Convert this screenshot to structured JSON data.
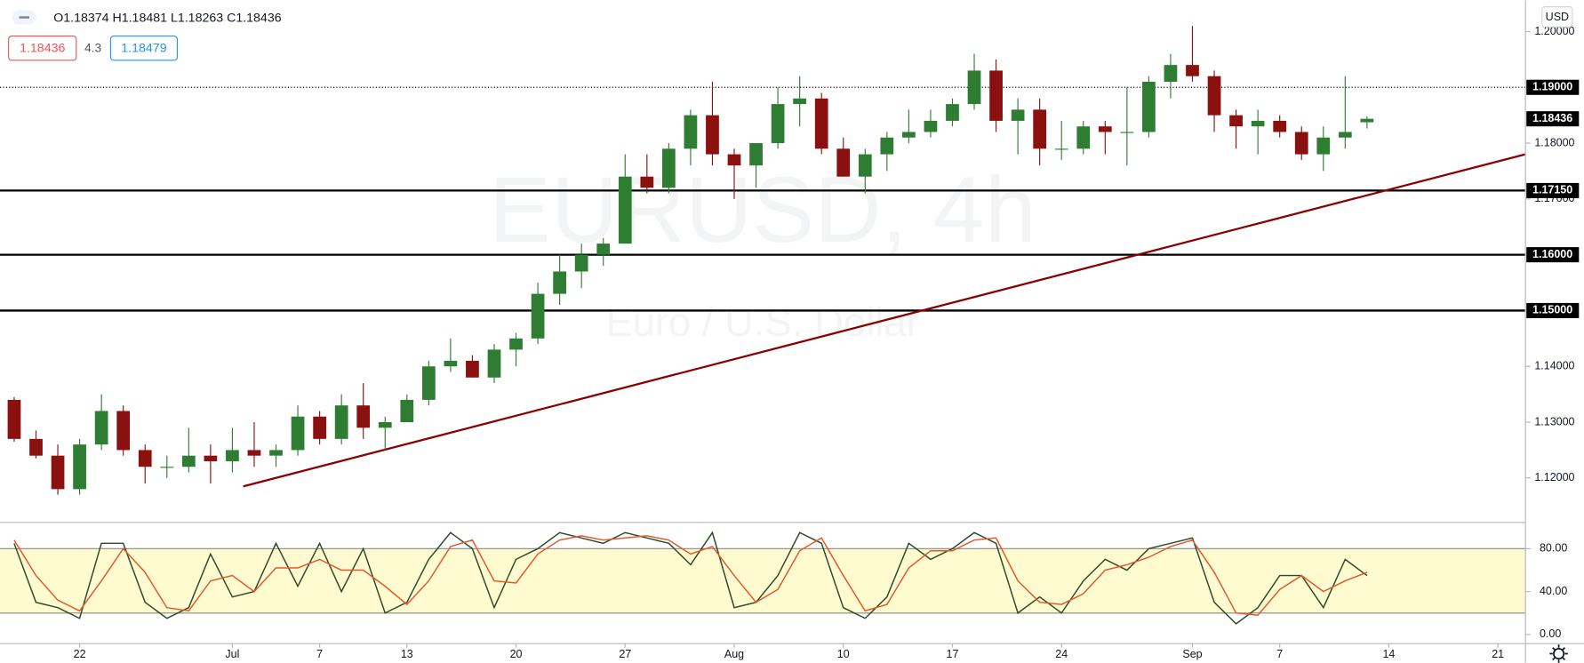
{
  "header": {
    "ohlc": "O1.18374 H1.18481 L1.18263 C1.18436",
    "bid": "1.18436",
    "spread": "4.3",
    "ask": "1.18479",
    "currency": "USD",
    "watermark": "EURUSD, 4h",
    "watermark_sub": "Euro / U.S. Dollar"
  },
  "chart_data": [
    {
      "type": "candlestick",
      "open": [
        1.134,
        1.127,
        1.124,
        1.118,
        1.126,
        1.132,
        1.125,
        1.122,
        1.122,
        1.124,
        1.123,
        1.125,
        1.124,
        1.125,
        1.131,
        1.127,
        1.133,
        1.129,
        1.13,
        1.134,
        1.14,
        1.141,
        1.138,
        1.143,
        1.145,
        1.153,
        1.157,
        1.16,
        1.162,
        1.174,
        1.172,
        1.179,
        1.185,
        1.178,
        1.176,
        1.18,
        1.187,
        1.188,
        1.179,
        1.174,
        1.178,
        1.181,
        1.182,
        1.184,
        1.187,
        1.193,
        1.184,
        1.186,
        1.179,
        1.179,
        1.183,
        1.182,
        1.182,
        1.191,
        1.194,
        1.192,
        1.185,
        1.183,
        1.184,
        1.182,
        1.178,
        1.181,
        1.18374
      ],
      "high": [
        1.1345,
        1.1285,
        1.126,
        1.127,
        1.135,
        1.133,
        1.126,
        1.124,
        1.129,
        1.126,
        1.129,
        1.13,
        1.126,
        1.133,
        1.132,
        1.135,
        1.137,
        1.131,
        1.135,
        1.141,
        1.145,
        1.142,
        1.144,
        1.146,
        1.155,
        1.16,
        1.162,
        1.163,
        1.178,
        1.178,
        1.18,
        1.186,
        1.191,
        1.179,
        1.18,
        1.19,
        1.192,
        1.189,
        1.181,
        1.179,
        1.182,
        1.186,
        1.186,
        1.188,
        1.196,
        1.195,
        1.188,
        1.188,
        1.184,
        1.184,
        1.184,
        1.19,
        1.192,
        1.196,
        1.201,
        1.193,
        1.186,
        1.186,
        1.185,
        1.183,
        1.183,
        1.192,
        1.18481
      ],
      "low": [
        1.1265,
        1.1235,
        1.117,
        1.117,
        1.125,
        1.124,
        1.119,
        1.12,
        1.121,
        1.119,
        1.121,
        1.122,
        1.122,
        1.124,
        1.126,
        1.126,
        1.127,
        1.125,
        1.13,
        1.133,
        1.139,
        1.138,
        1.137,
        1.14,
        1.144,
        1.151,
        1.154,
        1.158,
        1.162,
        1.171,
        1.171,
        1.176,
        1.176,
        1.17,
        1.172,
        1.179,
        1.183,
        1.178,
        1.174,
        1.171,
        1.175,
        1.18,
        1.181,
        1.183,
        1.186,
        1.182,
        1.178,
        1.176,
        1.177,
        1.178,
        1.178,
        1.176,
        1.181,
        1.188,
        1.191,
        1.182,
        1.179,
        1.178,
        1.181,
        1.177,
        1.175,
        1.179,
        1.18263
      ],
      "close": [
        1.127,
        1.124,
        1.118,
        1.126,
        1.132,
        1.125,
        1.122,
        1.122,
        1.124,
        1.123,
        1.125,
        1.124,
        1.125,
        1.131,
        1.127,
        1.133,
        1.129,
        1.13,
        1.134,
        1.14,
        1.141,
        1.138,
        1.143,
        1.145,
        1.153,
        1.157,
        1.16,
        1.162,
        1.174,
        1.172,
        1.179,
        1.185,
        1.178,
        1.176,
        1.18,
        1.187,
        1.188,
        1.179,
        1.174,
        1.178,
        1.181,
        1.182,
        1.184,
        1.187,
        1.193,
        1.184,
        1.186,
        1.179,
        1.179,
        1.183,
        1.182,
        1.182,
        1.191,
        1.194,
        1.192,
        1.185,
        1.183,
        1.184,
        1.182,
        1.178,
        1.181,
        1.182,
        1.18436
      ],
      "up_color": "#2e7d32",
      "down_color": "#8b1010",
      "xlim": [
        -0.65,
        69.26
      ],
      "ylim": [
        1.11204,
        1.20561
      ],
      "xticks": [
        {
          "value": 3,
          "label": "22"
        },
        {
          "value": 10,
          "label": "Jul"
        },
        {
          "value": 14,
          "label": "7"
        },
        {
          "value": 18,
          "label": "13"
        },
        {
          "value": 23,
          "label": "20"
        },
        {
          "value": 28,
          "label": "27"
        },
        {
          "value": 33,
          "label": "Aug"
        },
        {
          "value": 38,
          "label": "10"
        },
        {
          "value": 43,
          "label": "17"
        },
        {
          "value": 48,
          "label": "24"
        },
        {
          "value": 54,
          "label": "Sep"
        },
        {
          "value": 58,
          "label": "7"
        },
        {
          "value": 63,
          "label": "14"
        },
        {
          "value": 68,
          "label": "21"
        }
      ],
      "yticks": [
        {
          "value": 1.2,
          "label": "1.20000"
        },
        {
          "value": 1.18,
          "label": "1.18000"
        },
        {
          "value": 1.17,
          "label": "1.17000"
        },
        {
          "value": 1.14,
          "label": "1.14000"
        },
        {
          "value": 1.13,
          "label": "1.13000"
        },
        {
          "value": 1.12,
          "label": "1.12000"
        }
      ],
      "hlines": [
        {
          "value": 1.19,
          "label": "1.19000",
          "style": "dotted"
        },
        {
          "value": 1.1715,
          "label": "1.17150",
          "style": "solid"
        },
        {
          "value": 1.16,
          "label": "1.16000",
          "style": "solid"
        },
        {
          "value": 1.15,
          "label": "1.15000",
          "style": "solid"
        }
      ],
      "last_price": {
        "value": 1.18436,
        "label": "1.18436"
      },
      "trendline": {
        "x": [
          10.5,
          69.26
        ],
        "y": [
          1.1185,
          1.178
        ],
        "color": "#8b0000"
      }
    },
    {
      "type": "line",
      "series": [
        {
          "name": "%K",
          "color": "#2f4a2a",
          "values": [
            85,
            30,
            25,
            15,
            85,
            85,
            30,
            15,
            25,
            75,
            35,
            40,
            85,
            45,
            85,
            40,
            80,
            20,
            30,
            70,
            95,
            80,
            25,
            70,
            80,
            95,
            90,
            85,
            95,
            90,
            85,
            65,
            95,
            25,
            30,
            55,
            95,
            85,
            25,
            15,
            35,
            85,
            70,
            80,
            95,
            85,
            20,
            35,
            20,
            50,
            70,
            60,
            80,
            85,
            90,
            30,
            10,
            25,
            55,
            55,
            25,
            70,
            55
          ]
        },
        {
          "name": "%D",
          "color": "#e4572e",
          "values": [
            88,
            55,
            32,
            22,
            50,
            80,
            58,
            25,
            22,
            50,
            55,
            40,
            62,
            62,
            70,
            60,
            60,
            45,
            28,
            50,
            82,
            88,
            50,
            48,
            75,
            88,
            92,
            88,
            90,
            92,
            88,
            75,
            82,
            55,
            30,
            42,
            78,
            90,
            55,
            22,
            28,
            62,
            78,
            78,
            88,
            90,
            50,
            30,
            28,
            38,
            60,
            65,
            72,
            82,
            88,
            58,
            20,
            18,
            42,
            55,
            40,
            50,
            58
          ]
        }
      ],
      "ylim": [
        -8.5,
        104.5
      ],
      "yticks": [
        {
          "value": 80,
          "label": "80.00"
        },
        {
          "value": 40,
          "label": "40.00"
        },
        {
          "value": 0,
          "label": "0.00"
        }
      ],
      "band": [
        20,
        80
      ],
      "band_color": "#fffbd0"
    }
  ]
}
